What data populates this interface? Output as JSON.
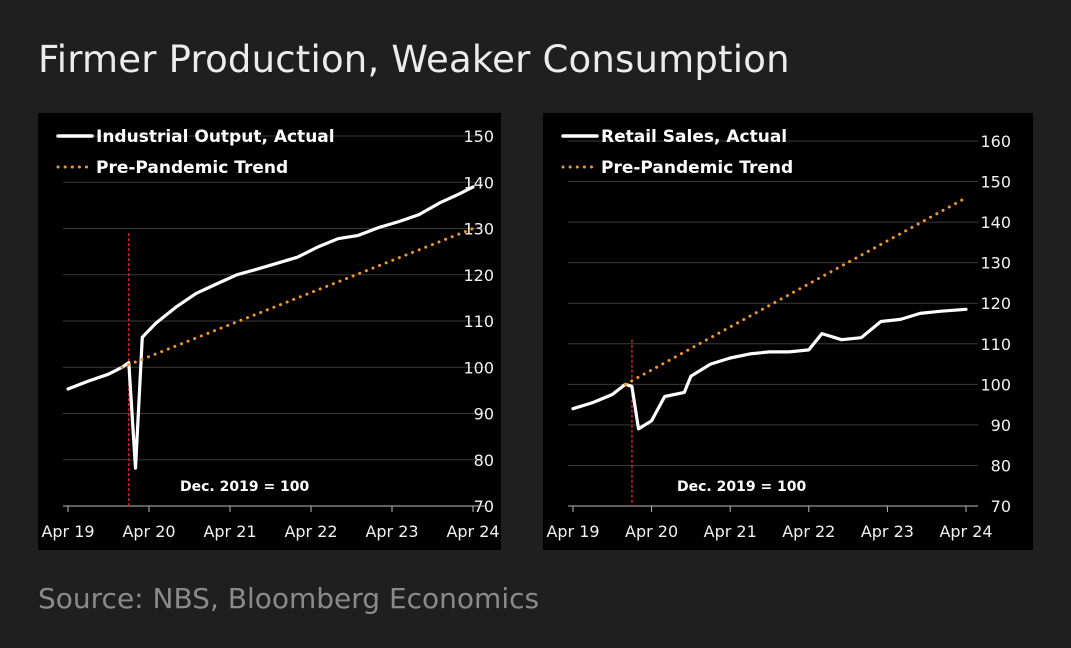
{
  "header": {
    "title": "Firmer Production, Weaker Consumption"
  },
  "footer": {
    "source": "Source: NBS, Bloomberg Economics"
  },
  "colors": {
    "background": "#1f1f1f",
    "panel": "#000000",
    "actual": "#ffffff",
    "trend": "#f0962e",
    "marker": "#c0272d",
    "grid": "#3a3a3a"
  },
  "chart_data": [
    {
      "type": "line",
      "y_axis_position": "right",
      "legend_position": "top-left",
      "grid": true,
      "ylim": [
        70,
        150
      ],
      "yticks": [
        70,
        80,
        90,
        100,
        110,
        120,
        130,
        140,
        150
      ],
      "xlim": [
        "2019-04",
        "2024-04"
      ],
      "xticks": [
        {
          "date": "2019-04",
          "label": "Apr 19"
        },
        {
          "date": "2020-04",
          "label": "Apr 20"
        },
        {
          "date": "2021-04",
          "label": "Apr 21"
        },
        {
          "date": "2022-04",
          "label": "Apr 22"
        },
        {
          "date": "2023-04",
          "label": "Apr 23"
        },
        {
          "date": "2024-04",
          "label": "Apr 24"
        }
      ],
      "annotation": "Dec. 2019 = 100",
      "marker_date": "2020-01",
      "series": [
        {
          "name": "Industrial Output, Actual",
          "style": "solid",
          "color": "#ffffff",
          "points": [
            [
              "2019-04",
              95.3
            ],
            [
              "2019-07",
              97
            ],
            [
              "2019-10",
              98.5
            ],
            [
              "2019-12",
              100
            ],
            [
              "2020-01",
              101
            ],
            [
              "2020-02",
              78.2
            ],
            [
              "2020-03",
              106.5
            ],
            [
              "2020-05",
              109.5
            ],
            [
              "2020-08",
              113
            ],
            [
              "2020-11",
              116
            ],
            [
              "2021-02",
              118
            ],
            [
              "2021-05",
              120
            ],
            [
              "2021-08",
              121.2
            ],
            [
              "2021-11",
              122.5
            ],
            [
              "2022-02",
              123.8
            ],
            [
              "2022-05",
              126
            ],
            [
              "2022-08",
              127.8
            ],
            [
              "2022-11",
              128.5
            ],
            [
              "2023-02",
              130.2
            ],
            [
              "2023-05",
              131.5
            ],
            [
              "2023-08",
              133
            ],
            [
              "2023-11",
              135.5
            ],
            [
              "2024-02",
              137.5
            ],
            [
              "2024-04",
              139
            ]
          ]
        },
        {
          "name": "Pre-Pandemic Trend",
          "style": "dotted",
          "color": "#f0962e",
          "points": [
            [
              "2019-12",
              100
            ],
            [
              "2024-04",
              130
            ]
          ]
        }
      ]
    },
    {
      "type": "line",
      "y_axis_position": "right",
      "legend_position": "top-left",
      "grid": true,
      "ylim": [
        70,
        160
      ],
      "yticks": [
        70,
        80,
        90,
        100,
        110,
        120,
        130,
        140,
        150,
        160
      ],
      "xlim": [
        "2019-04",
        "2024-04"
      ],
      "xticks": [
        {
          "date": "2019-04",
          "label": "Apr 19"
        },
        {
          "date": "2020-04",
          "label": "Apr 20"
        },
        {
          "date": "2021-04",
          "label": "Apr 21"
        },
        {
          "date": "2022-04",
          "label": "Apr 22"
        },
        {
          "date": "2023-04",
          "label": "Apr 23"
        },
        {
          "date": "2024-04",
          "label": "Apr 24"
        }
      ],
      "annotation": "Dec. 2019 = 100",
      "marker_date": "2020-01",
      "series": [
        {
          "name": "Retail Sales, Actual",
          "style": "solid",
          "color": "#ffffff",
          "points": [
            [
              "2019-04",
              94
            ],
            [
              "2019-07",
              95.5
            ],
            [
              "2019-10",
              97.5
            ],
            [
              "2019-12",
              100
            ],
            [
              "2020-01",
              99.5
            ],
            [
              "2020-02",
              89
            ],
            [
              "2020-04",
              91
            ],
            [
              "2020-06",
              97
            ],
            [
              "2020-09",
              98
            ],
            [
              "2020-10",
              102
            ],
            [
              "2021-01",
              105
            ],
            [
              "2021-04",
              106.5
            ],
            [
              "2021-07",
              107.5
            ],
            [
              "2021-10",
              108
            ],
            [
              "2022-01",
              108
            ],
            [
              "2022-04",
              108.5
            ],
            [
              "2022-06",
              112.5
            ],
            [
              "2022-09",
              111
            ],
            [
              "2022-12",
              111.5
            ],
            [
              "2023-03",
              115.5
            ],
            [
              "2023-06",
              116
            ],
            [
              "2023-09",
              117.5
            ],
            [
              "2023-12",
              118
            ],
            [
              "2024-04",
              118.5
            ]
          ]
        },
        {
          "name": "Pre-Pandemic Trend",
          "style": "dotted",
          "color": "#f0962e",
          "points": [
            [
              "2019-12",
              100
            ],
            [
              "2024-04",
              146
            ]
          ]
        }
      ]
    }
  ]
}
